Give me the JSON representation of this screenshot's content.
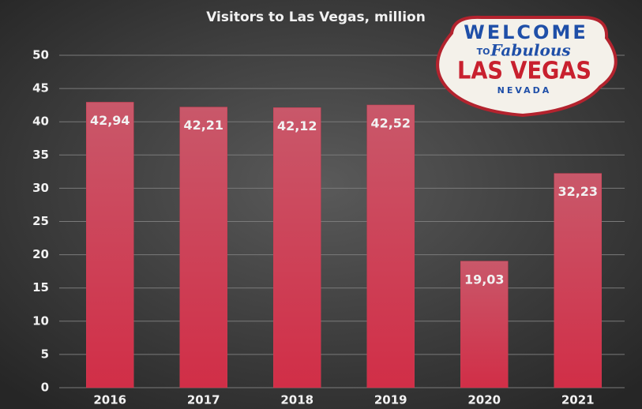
{
  "chart_data": {
    "type": "bar",
    "title": "Visitors to Las Vegas, million",
    "categories": [
      "2016",
      "2017",
      "2018",
      "2019",
      "2020",
      "2021"
    ],
    "values": [
      42.94,
      42.21,
      42.12,
      42.52,
      19.03,
      32.23
    ],
    "value_labels": [
      "42,94",
      "42,21",
      "42,12",
      "42,52",
      "19,03",
      "32,23"
    ],
    "color": "#cc3c52",
    "ylim": [
      0,
      50
    ],
    "yticks": [
      0,
      5,
      10,
      15,
      20,
      25,
      30,
      35,
      40,
      45,
      50
    ],
    "grid": true,
    "annotations": [
      "WELCOME",
      "TO",
      "Fabulous",
      "LAS VEGAS",
      "NEVADA"
    ]
  }
}
